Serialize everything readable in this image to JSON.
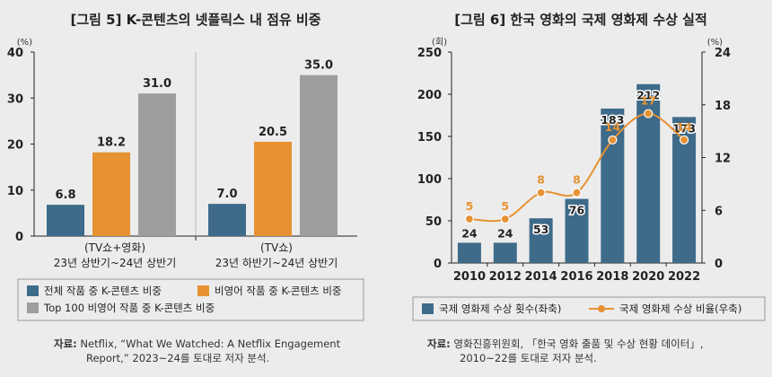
{
  "chart_data": [
    {
      "type": "bar",
      "title": "[그림 5] K-콘텐츠의 넷플릭스 내 점유 비중",
      "ylabel": "(%)",
      "ylim": [
        0,
        40
      ],
      "yticks": [
        "0",
        "10",
        "20",
        "30",
        "40"
      ],
      "groups": [
        {
          "label_line1": "(TV쇼+영화)",
          "label_line2": "23년 상반기~24년 상반기"
        },
        {
          "label_line1": "(TV쇼)",
          "label_line2": "23년 하반기~24년 상반기"
        }
      ],
      "series": [
        {
          "name": "전체 작품 중 K-콘텐츠 비중",
          "color": "#3e6b8a",
          "values": [
            6.8,
            7.0
          ],
          "labels": [
            "6.8",
            "7.0"
          ]
        },
        {
          "name": "비영어 작품 중 K-콘텐츠 비중",
          "color": "#e69232",
          "values": [
            18.2,
            20.5
          ],
          "labels": [
            "18.2",
            "20.5"
          ]
        },
        {
          "name": "Top 100 비영어 작품 중 K-콘텐츠 비중",
          "color": "#9e9e9e",
          "values": [
            31.0,
            35.0
          ],
          "labels": [
            "31.0",
            "35.0"
          ]
        }
      ],
      "legend_position": "bottom",
      "source_label": "자료:",
      "source_line1": "Netflix, “What We Watched: A Netflix Engagement",
      "source_line2": "Report,” 2023~24를 토대로 저자 분석."
    },
    {
      "type": "bar+line",
      "title": "[그림 6] 한국 영화의 국제 영화제 수상 실적",
      "ylabel_left": "(회)",
      "ylabel_right": "(%)",
      "ylim_left": [
        0,
        250
      ],
      "ylim_right": [
        0,
        24
      ],
      "yticks_left": [
        "0",
        "50",
        "100",
        "150",
        "200",
        "250"
      ],
      "yticks_right": [
        "0",
        "6",
        "12",
        "18",
        "24"
      ],
      "categories": [
        "2010",
        "2012",
        "2014",
        "2016",
        "2018",
        "2020",
        "2022"
      ],
      "bars": {
        "name": "국제 영화제 수상 횟수(좌축)",
        "color": "#3e6b8a",
        "values": [
          24,
          24,
          53,
          76,
          183,
          212,
          173
        ],
        "labels": [
          "24",
          "24",
          "53",
          "76",
          "183",
          "212",
          "173"
        ]
      },
      "line": {
        "name": "국제 영화제 수상 비율(우축)",
        "color": "#e69232",
        "values": [
          5,
          5,
          8,
          8,
          14,
          17,
          14
        ],
        "labels": [
          "5",
          "5",
          "8",
          "8",
          "14",
          "17",
          "14"
        ]
      },
      "legend_position": "bottom",
      "source_label": "자료:",
      "source_line1": "영화진흥위원회, 「한국 영화 출품 및 수상 현황 데이터」,",
      "source_line2": "2010~22를 토대로 저자 분석."
    }
  ]
}
